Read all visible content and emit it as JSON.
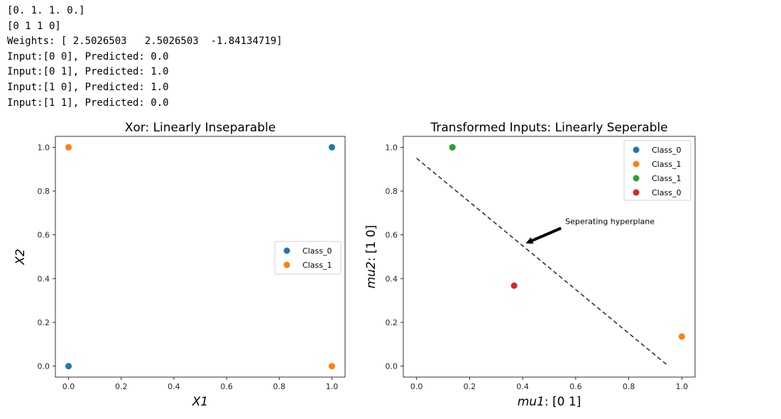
{
  "console": {
    "lines": [
      "[0. 1. 1. 0.]",
      "[0 1 1 0]",
      "Weights: [ 2.5026503   2.5026503  -1.84134719]",
      "Input:[0 0], Predicted: 0.0",
      "Input:[0 1], Predicted: 1.0",
      "Input:[1 0], Predicted: 1.0",
      "Input:[1 1], Predicted: 0.0"
    ]
  },
  "chart_data": [
    {
      "type": "scatter",
      "title": "Xor: Linearly Inseparable",
      "xlabel": "X1",
      "ylabel": "X2",
      "xlim": [
        -0.05,
        1.05
      ],
      "ylim": [
        -0.05,
        1.05
      ],
      "xticks": [
        "0.0",
        "0.2",
        "0.4",
        "0.6",
        "0.8",
        "1.0"
      ],
      "yticks": [
        "0.0",
        "0.2",
        "0.4",
        "0.6",
        "0.8",
        "1.0"
      ],
      "legend_position": "center-right",
      "series": [
        {
          "name": "Class_0",
          "color": "#1f77b4",
          "points": [
            [
              0,
              0
            ],
            [
              1,
              1
            ]
          ]
        },
        {
          "name": "Class_1",
          "color": "#ff7f0e",
          "points": [
            [
              0,
              1
            ],
            [
              1,
              0
            ]
          ]
        }
      ]
    },
    {
      "type": "scatter",
      "title": "Transformed Inputs: Linearly Seperable",
      "xlabel": "mu1: [0 1]",
      "ylabel": "mu2: [1 0]",
      "xlim": [
        -0.05,
        1.05
      ],
      "ylim": [
        -0.05,
        1.05
      ],
      "xticks": [
        "0.0",
        "0.2",
        "0.4",
        "0.6",
        "0.8",
        "1.0"
      ],
      "yticks": [
        "0.0",
        "0.2",
        "0.4",
        "0.6",
        "0.8",
        "1.0"
      ],
      "legend_position": "top-right",
      "series": [
        {
          "name": "Class_0",
          "color": "#1f77b4",
          "points": [
            [
              0.1353,
              1.0
            ]
          ]
        },
        {
          "name": "Class_1",
          "color": "#ff7f0e",
          "points": [
            [
              1.0,
              0.1353
            ]
          ]
        },
        {
          "name": "Class_1",
          "color": "#2ca02c",
          "points": [
            [
              0.1353,
              1.0
            ]
          ]
        },
        {
          "name": "Class_0",
          "color": "#d62728",
          "points": [
            [
              0.3679,
              0.3679
            ]
          ]
        }
      ],
      "line": {
        "x": [
          0.0,
          0.95
        ],
        "y": [
          0.95,
          0.0
        ],
        "style": "dashed",
        "color": "#333333"
      },
      "annotation": {
        "text": "Seperating hyperplane",
        "text_xy": [
          0.55,
          0.65
        ],
        "arrow_to": [
          0.4,
          0.55
        ]
      }
    }
  ]
}
